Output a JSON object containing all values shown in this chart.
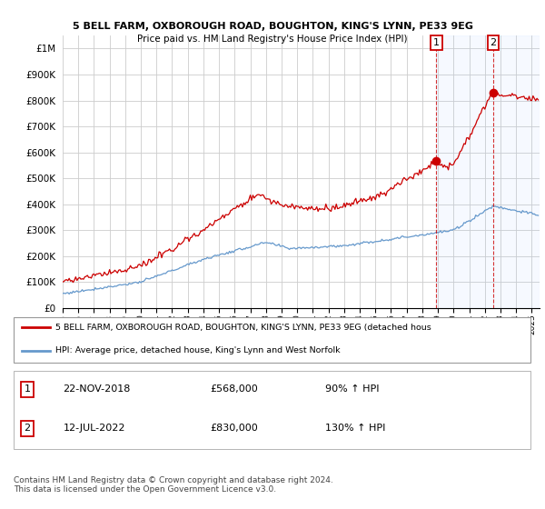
{
  "title1": "5 BELL FARM, OXBOROUGH ROAD, BOUGHTON, KING'S LYNN, PE33 9EG",
  "title2": "Price paid vs. HM Land Registry's House Price Index (HPI)",
  "legend_red": "5 BELL FARM, OXBOROUGH ROAD, BOUGHTON, KING'S LYNN, PE33 9EG (detached hous",
  "legend_blue": "HPI: Average price, detached house, King's Lynn and West Norfolk",
  "footnote": "Contains HM Land Registry data © Crown copyright and database right 2024.\nThis data is licensed under the Open Government Licence v3.0.",
  "annotation1_label": "1",
  "annotation1_date": "22-NOV-2018",
  "annotation1_price": "£568,000",
  "annotation1_hpi": "90% ↑ HPI",
  "annotation2_label": "2",
  "annotation2_date": "12-JUL-2022",
  "annotation2_price": "£830,000",
  "annotation2_hpi": "130% ↑ HPI",
  "red_color": "#cc0000",
  "blue_color": "#6699cc",
  "background_color": "#ffffff",
  "grid_color": "#cccccc",
  "ylim_max": 1050000,
  "yticks": [
    0,
    100000,
    200000,
    300000,
    400000,
    500000,
    600000,
    700000,
    800000,
    900000,
    1000000
  ],
  "ytick_labels": [
    "£0",
    "£100K",
    "£200K",
    "£300K",
    "£400K",
    "£500K",
    "£600K",
    "£700K",
    "£800K",
    "£900K",
    "£1M"
  ],
  "sale1_x": 2018.9,
  "sale1_y": 568000,
  "sale2_x": 2022.54,
  "sale2_y": 830000,
  "vline1_x": 2018.9,
  "vline2_x": 2022.54,
  "xmin": 1995,
  "xmax": 2025.5
}
